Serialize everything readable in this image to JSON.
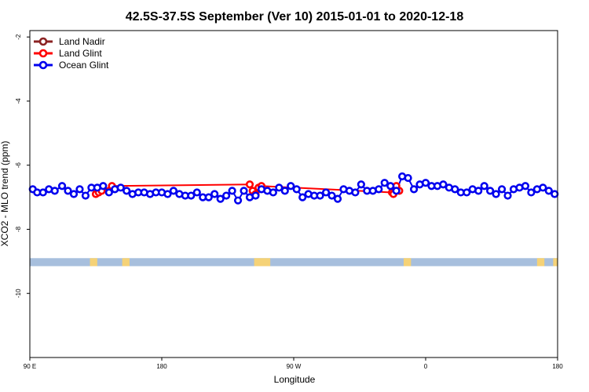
{
  "chart_data": {
    "type": "line",
    "title": "42.5S-37.5S September (Ver 10)   2015-01-01 to 2020-12-18",
    "xlabel": "Longitude",
    "ylabel": "XCO2 - MLO trend (ppm)",
    "xlim": [
      90,
      450
    ],
    "ylim": [
      -12,
      -1.8
    ],
    "x_ticks": [
      {
        "value": 90,
        "label": "90 E"
      },
      {
        "value": 180,
        "label": "180"
      },
      {
        "value": 270,
        "label": "90 W"
      },
      {
        "value": 360,
        "label": "0"
      },
      {
        "value": 450,
        "label": "180"
      }
    ],
    "y_ticks": [
      {
        "value": -2,
        "label": "-2"
      },
      {
        "value": -4,
        "label": "-4"
      },
      {
        "value": -6,
        "label": "-6"
      },
      {
        "value": -8,
        "label": "-8"
      },
      {
        "value": -10,
        "label": "-10"
      }
    ],
    "grid": false,
    "legend_position": "top-left",
    "colors": {
      "land_nadir": "#8B2323",
      "land_glint": "#FF0000",
      "ocean_glint": "#0000EE",
      "band_ocean": "#A7BFDD",
      "band_land": "#F5D277"
    },
    "series": [
      {
        "name": "Land Nadir",
        "key": "land_nadir",
        "x": [],
        "y": []
      },
      {
        "name": "Land Glint",
        "key": "land_glint",
        "x": [
          135,
          137,
          139,
          146,
          240,
          242,
          244,
          246,
          248,
          337,
          338,
          340,
          342
        ],
        "y": [
          -6.9,
          -6.85,
          -6.8,
          -6.65,
          -6.6,
          -6.8,
          -6.9,
          -6.7,
          -6.65,
          -6.85,
          -6.9,
          -6.65,
          -6.8
        ]
      },
      {
        "name": "Ocean Glint",
        "key": "ocean_glint",
        "x": [
          92,
          95,
          99,
          103,
          107,
          112,
          116,
          120,
          124,
          128,
          132,
          136,
          140,
          144,
          148,
          152,
          156,
          160,
          164,
          168,
          172,
          176,
          180,
          184,
          188,
          192,
          196,
          200,
          204,
          208,
          212,
          216,
          220,
          224,
          228,
          232,
          236,
          240,
          244,
          248,
          252,
          256,
          260,
          264,
          268,
          272,
          276,
          280,
          284,
          288,
          292,
          296,
          300,
          304,
          308,
          312,
          316,
          320,
          324,
          328,
          332,
          336,
          340,
          344,
          348,
          352,
          356,
          360,
          364,
          368,
          372,
          376,
          380,
          384,
          388,
          392,
          396,
          400,
          404,
          408,
          412,
          416,
          420,
          424,
          428,
          432,
          436,
          440,
          444,
          448
        ],
        "y": [
          -6.75,
          -6.85,
          -6.85,
          -6.75,
          -6.8,
          -6.65,
          -6.8,
          -6.9,
          -6.75,
          -6.95,
          -6.7,
          -6.7,
          -6.65,
          -6.85,
          -6.75,
          -6.7,
          -6.8,
          -6.9,
          -6.85,
          -6.85,
          -6.9,
          -6.85,
          -6.85,
          -6.9,
          -6.8,
          -6.9,
          -6.95,
          -6.95,
          -6.85,
          -7.0,
          -7.0,
          -6.9,
          -7.05,
          -6.95,
          -6.8,
          -7.1,
          -6.8,
          -7.0,
          -6.95,
          -6.75,
          -6.8,
          -6.85,
          -6.7,
          -6.8,
          -6.65,
          -6.75,
          -7.0,
          -6.9,
          -6.95,
          -6.95,
          -6.85,
          -6.95,
          -7.05,
          -6.75,
          -6.8,
          -6.85,
          -6.6,
          -6.8,
          -6.8,
          -6.75,
          -6.55,
          -6.65,
          -6.8,
          -6.35,
          -6.4,
          -6.75,
          -6.6,
          -6.55,
          -6.65,
          -6.65,
          -6.6,
          -6.7,
          -6.75,
          -6.85,
          -6.85,
          -6.75,
          -6.8,
          -6.65,
          -6.8,
          -6.9,
          -6.75,
          -6.95,
          -6.75,
          -6.7,
          -6.65,
          -6.85,
          -6.75,
          -6.7,
          -6.8,
          -6.9
        ]
      }
    ],
    "surface_band": {
      "y_range": [
        -9.15,
        -8.9
      ],
      "land_segments": [
        [
          131,
          136
        ],
        [
          153,
          158
        ],
        [
          243,
          254
        ],
        [
          345,
          350
        ],
        [
          436,
          441
        ],
        [
          447,
          450
        ]
      ]
    }
  }
}
